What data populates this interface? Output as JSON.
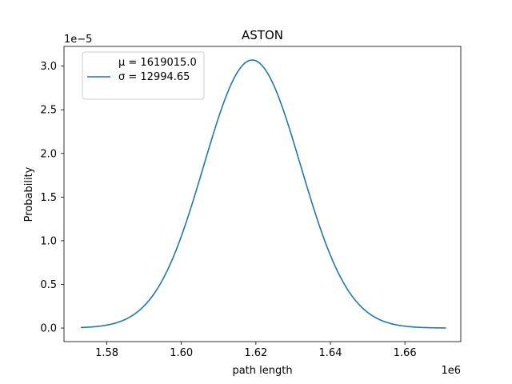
{
  "chart_data": {
    "type": "line",
    "title": "ASTON",
    "xlabel": "path length",
    "ylabel": "Probability",
    "x_offset_label": "1e6",
    "y_offset_label": "1e−5",
    "x_scale": 1000000,
    "y_scale": 1e-05,
    "xlim": [
      1568500,
      1675000
    ],
    "ylim": [
      -1.554e-06,
      3.226e-05
    ],
    "x_ticks": [
      1580000,
      1600000,
      1620000,
      1640000,
      1660000
    ],
    "x_tick_labels": [
      "1.58",
      "1.60",
      "1.62",
      "1.64",
      "1.66"
    ],
    "y_ticks": [
      0,
      5e-06,
      1e-05,
      1.5e-05,
      2e-05,
      2.5e-05,
      3e-05
    ],
    "y_tick_labels": [
      "0.0",
      "0.5",
      "1.0",
      "1.5",
      "2.0",
      "2.5",
      "3.0"
    ],
    "grid": false,
    "legend": {
      "position": "top-left",
      "lines": [
        "μ = 1619015.0",
        "σ = 12994.65"
      ]
    },
    "series": [
      {
        "mu": 1619015.0,
        "sigma": 12994.65,
        "x_range": [
          1573000,
          1671000
        ],
        "color": "#1f77b4"
      }
    ]
  }
}
